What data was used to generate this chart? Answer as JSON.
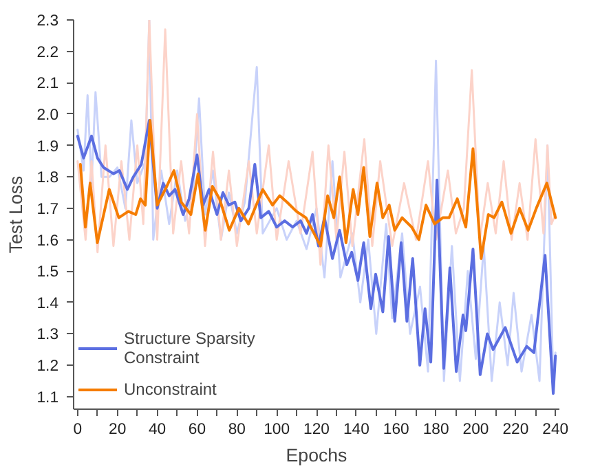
{
  "chart_data": {
    "type": "line",
    "xlabel": "Epochs",
    "ylabel": "Test Loss",
    "xlim": [
      -2,
      242
    ],
    "xticks": [
      0,
      {
        "value": 10,
        "label": null
      },
      20,
      {
        "value": 30,
        "label": null
      },
      40,
      {
        "value": 50,
        "label": null
      },
      60,
      {
        "value": 70,
        "label": null
      },
      80,
      {
        "value": 90,
        "label": null
      },
      100,
      {
        "value": 110,
        "label": null
      },
      120,
      {
        "value": 130,
        "label": null
      },
      140,
      {
        "value": 150,
        "label": null
      },
      160,
      {
        "value": 170,
        "label": null
      },
      180,
      {
        "value": 190,
        "label": null
      },
      200,
      {
        "value": 210,
        "label": null
      },
      220,
      {
        "value": 230,
        "label": null
      },
      240
    ],
    "ylim": [
      1.06,
      2.3
    ],
    "yticks": [
      1.1,
      1.2,
      1.3,
      1.4,
      1.5,
      1.6,
      1.7,
      1.8,
      1.9,
      {
        "value": 2.0,
        "label": "2.0"
      },
      2.1,
      2.2,
      2.3
    ],
    "grid": false,
    "legend": "bottom left",
    "line_style": "solid",
    "marker": "none",
    "series": [
      {
        "color": "#c8d2fa",
        "x": [
          0,
          3,
          5,
          7,
          9,
          12,
          16,
          20,
          24,
          27,
          30,
          34,
          36,
          38,
          42,
          46,
          50,
          54,
          58,
          61,
          64,
          68,
          72,
          76,
          80,
          84,
          90,
          93,
          100,
          105,
          110,
          115,
          120,
          124,
          128,
          132,
          138,
          142,
          146,
          150,
          155,
          158,
          163,
          167,
          172,
          176,
          180,
          184,
          188,
          192,
          196,
          200,
          204,
          208,
          212,
          216,
          219,
          223,
          228,
          232,
          236,
          239,
          240
        ],
        "values": [
          1.95,
          1.82,
          2.06,
          1.78,
          2.07,
          1.8,
          1.8,
          1.83,
          1.7,
          1.98,
          1.78,
          1.85,
          2.3,
          1.6,
          1.82,
          1.65,
          1.82,
          1.66,
          1.75,
          2.05,
          1.68,
          1.82,
          1.6,
          1.75,
          1.62,
          1.72,
          2.15,
          1.62,
          1.7,
          1.6,
          1.66,
          1.57,
          1.7,
          1.48,
          1.85,
          1.48,
          1.62,
          1.4,
          1.6,
          1.3,
          1.65,
          1.35,
          1.62,
          1.3,
          1.45,
          1.18,
          2.17,
          1.15,
          1.58,
          1.15,
          1.5,
          1.22,
          1.58,
          1.15,
          1.4,
          1.2,
          1.43,
          1.18,
          1.36,
          1.15,
          1.9,
          1.12,
          1.24
        ]
      },
      {
        "color": "#fcd3c9",
        "x": [
          0,
          4,
          7,
          10,
          14,
          18,
          22,
          26,
          30,
          33,
          36,
          40,
          44,
          48,
          52,
          56,
          60,
          64,
          68,
          72,
          76,
          80,
          86,
          90,
          96,
          100,
          106,
          112,
          118,
          122,
          126,
          130,
          134,
          138,
          144,
          148,
          152,
          158,
          164,
          170,
          176,
          180,
          186,
          190,
          194,
          198,
          202,
          206,
          210,
          214,
          218,
          222,
          226,
          230,
          234,
          236,
          238,
          240
        ],
        "values": [
          1.85,
          1.6,
          1.85,
          1.56,
          1.9,
          1.58,
          1.85,
          1.6,
          1.9,
          1.65,
          2.3,
          1.6,
          2.27,
          1.62,
          1.85,
          1.62,
          2.0,
          1.58,
          1.88,
          1.6,
          1.82,
          1.58,
          1.85,
          1.62,
          1.9,
          1.6,
          1.85,
          1.62,
          1.88,
          1.52,
          1.9,
          1.6,
          1.88,
          1.58,
          1.92,
          1.58,
          1.85,
          1.58,
          1.78,
          1.6,
          1.85,
          1.6,
          1.82,
          1.62,
          1.7,
          2.14,
          1.6,
          1.78,
          1.62,
          1.85,
          1.6,
          1.78,
          1.6,
          1.92,
          1.62,
          1.9,
          1.65,
          1.68
        ]
      },
      {
        "name": "Structure Sparsity Constraint",
        "color": "#5b6ee1",
        "x": [
          0,
          3,
          7,
          10,
          13,
          18,
          21,
          25,
          28,
          32,
          36,
          40,
          43,
          46,
          49,
          53,
          56,
          60,
          63,
          66,
          70,
          73,
          76,
          79,
          82,
          86,
          89,
          92,
          96,
          100,
          104,
          108,
          112,
          115,
          118,
          121,
          124,
          128,
          131.6,
          135.2,
          137.7,
          140.8,
          143.7,
          147.3,
          149.7,
          153.3,
          156.2,
          159.3,
          162.5,
          165.4,
          168.3,
          171.9,
          174.5,
          177.4,
          180.5,
          183.9,
          187,
          190.2,
          193.6,
          195,
          198.6,
          202.2,
          205.8,
          208.7,
          214.8,
          220.8,
          225.6,
          229.2,
          234.8,
          238.9,
          240
        ],
        "values": [
          1.93,
          1.86,
          1.93,
          1.86,
          1.83,
          1.81,
          1.82,
          1.76,
          1.8,
          1.84,
          1.98,
          1.7,
          1.78,
          1.74,
          1.76,
          1.68,
          1.73,
          1.87,
          1.71,
          1.76,
          1.68,
          1.75,
          1.71,
          1.72,
          1.66,
          1.7,
          1.84,
          1.67,
          1.69,
          1.64,
          1.66,
          1.64,
          1.66,
          1.62,
          1.68,
          1.58,
          1.67,
          1.54,
          1.63,
          1.52,
          1.56,
          1.47,
          1.59,
          1.38,
          1.49,
          1.37,
          1.61,
          1.34,
          1.59,
          1.34,
          1.54,
          1.2,
          1.38,
          1.21,
          1.79,
          1.19,
          1.51,
          1.18,
          1.36,
          1.31,
          1.57,
          1.17,
          1.3,
          1.25,
          1.32,
          1.21,
          1.26,
          1.24,
          1.55,
          1.11,
          1.23
        ]
      },
      {
        "name": "Unconstraint",
        "color": "#f57c00",
        "x": [
          1.4,
          3.9,
          6.3,
          9.9,
          15.9,
          20.7,
          25.5,
          29.2,
          31.6,
          34,
          36.4,
          40,
          44.8,
          48.4,
          52,
          56.9,
          60.5,
          64.1,
          67.7,
          71.3,
          76.2,
          81,
          85.8,
          93,
          97.9,
          101.5,
          105.1,
          109.9,
          114.7,
          122,
          125.6,
          128.7,
          131.6,
          134.8,
          138.4,
          140.8,
          143.7,
          146.8,
          150.4,
          153.3,
          156.5,
          159.3,
          163,
          167.8,
          171.4,
          175,
          179.3,
          183.4,
          186.6,
          190.7,
          195,
          198.6,
          202.7,
          206.3,
          209.2,
          213.1,
          217.7,
          222,
          226.3,
          230.4,
          235.7,
          240
        ],
        "values": [
          1.84,
          1.64,
          1.78,
          1.59,
          1.76,
          1.67,
          1.69,
          1.68,
          1.73,
          1.71,
          1.98,
          1.71,
          1.77,
          1.82,
          1.72,
          1.68,
          1.81,
          1.63,
          1.77,
          1.73,
          1.63,
          1.7,
          1.65,
          1.76,
          1.71,
          1.74,
          1.72,
          1.69,
          1.67,
          1.58,
          1.74,
          1.67,
          1.8,
          1.59,
          1.76,
          1.68,
          1.83,
          1.61,
          1.78,
          1.67,
          1.71,
          1.63,
          1.67,
          1.64,
          1.6,
          1.71,
          1.65,
          1.67,
          1.67,
          1.73,
          1.64,
          1.89,
          1.54,
          1.68,
          1.67,
          1.72,
          1.62,
          1.7,
          1.63,
          1.7,
          1.78,
          1.67
        ]
      }
    ]
  }
}
